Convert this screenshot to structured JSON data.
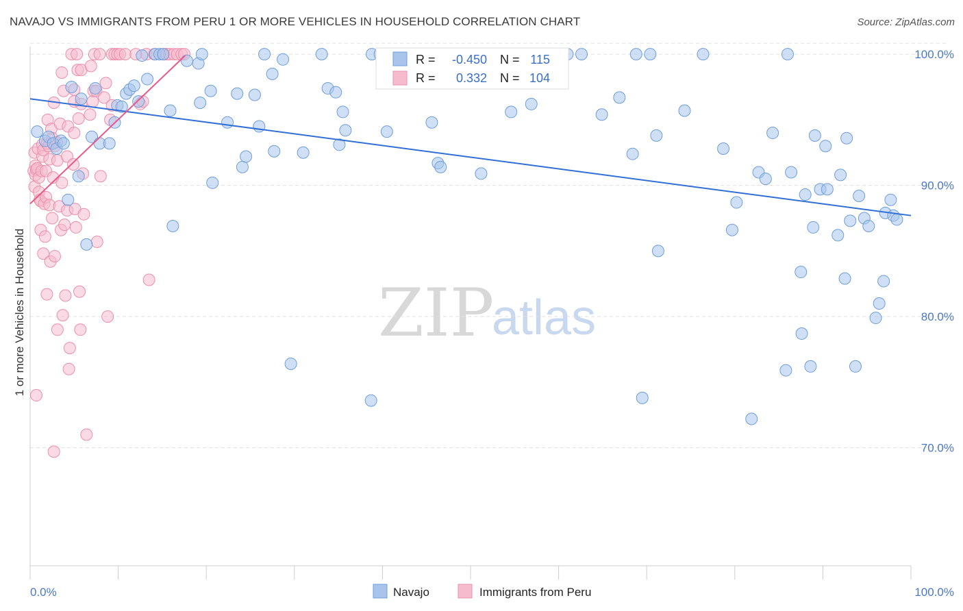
{
  "title": "NAVAJO VS IMMIGRANTS FROM PERU 1 OR MORE VEHICLES IN HOUSEHOLD CORRELATION CHART",
  "source": "Source: ZipAtlas.com",
  "watermark": {
    "zip": "ZIP",
    "atlas": "atlas"
  },
  "legend": {
    "r_label": "R =",
    "n_label": "N =",
    "rows": [
      {
        "r": "-0.450",
        "n": "115",
        "color": "#a8c4ec",
        "stroke": "#6f9edb"
      },
      {
        "r": "0.332",
        "n": "104",
        "color": "#f6bccd",
        "stroke": "#ec8fac"
      }
    ]
  },
  "colors": {
    "navajo_fill": "#a8c4ec",
    "navajo_stroke": "#6f9edb",
    "navajo_line": "#2f6fd6",
    "peru_fill": "#f6bccd",
    "peru_stroke": "#ec8fac",
    "peru_line": "#e8588a",
    "grid": "#e0e0e0",
    "axis": "#cccccc"
  },
  "chart_data": {
    "type": "scatter",
    "title": "NAVAJO VS IMMIGRANTS FROM PERU 1 OR MORE VEHICLES IN HOUSEHOLD CORRELATION CHART",
    "xlabel": "",
    "ylabel": "1 or more Vehicles in Household",
    "xlim": [
      0,
      100
    ],
    "ylim": [
      61.0,
      101.0
    ],
    "x_tick_labels": [
      "0.0%",
      "100.0%"
    ],
    "y_ticks": [
      70,
      80,
      90,
      100
    ],
    "y_tick_labels": [
      "70.0%",
      "80.0%",
      "90.0%",
      "100.0%"
    ],
    "grid": true,
    "legend_position": "top-center",
    "series": [
      {
        "name": "Navajo",
        "r": -0.45,
        "n": 115,
        "trend": [
          [
            0,
            96.6
          ],
          [
            100,
            87.7
          ]
        ],
        "points": [
          [
            0.8,
            94.1
          ],
          [
            1.7,
            93.4
          ],
          [
            2.1,
            93.7
          ],
          [
            2.6,
            93.2
          ],
          [
            3.0,
            92.8
          ],
          [
            3.5,
            93.4
          ],
          [
            3.8,
            93.2
          ],
          [
            4.3,
            88.9
          ],
          [
            4.7,
            97.5
          ],
          [
            5.5,
            90.7
          ],
          [
            5.8,
            96.6
          ],
          [
            6.4,
            85.5
          ],
          [
            7.0,
            93.7
          ],
          [
            7.4,
            97.4
          ],
          [
            7.9,
            93.2
          ],
          [
            9.0,
            93.2
          ],
          [
            9.6,
            94.8
          ],
          [
            9.9,
            96.1
          ],
          [
            10.4,
            96.0
          ],
          [
            10.9,
            97.0
          ],
          [
            11.3,
            97.3
          ],
          [
            11.8,
            97.6
          ],
          [
            12.3,
            96.4
          ],
          [
            12.7,
            99.9
          ],
          [
            13.3,
            98.1
          ],
          [
            14.2,
            100.0
          ],
          [
            14.7,
            100.0
          ],
          [
            15.1,
            100.0
          ],
          [
            15.9,
            95.7
          ],
          [
            16.2,
            86.9
          ],
          [
            17.8,
            99.5
          ],
          [
            19.1,
            99.3
          ],
          [
            19.3,
            96.3
          ],
          [
            19.5,
            100.0
          ],
          [
            20.5,
            97.2
          ],
          [
            20.7,
            90.2
          ],
          [
            22.4,
            94.8
          ],
          [
            23.5,
            97.0
          ],
          [
            24.1,
            91.4
          ],
          [
            24.5,
            92.2
          ],
          [
            25.5,
            96.9
          ],
          [
            26.0,
            94.5
          ],
          [
            26.6,
            100.0
          ],
          [
            27.5,
            98.5
          ],
          [
            27.7,
            92.6
          ],
          [
            28.7,
            99.6
          ],
          [
            29.6,
            76.4
          ],
          [
            31.0,
            92.5
          ],
          [
            33.1,
            100.0
          ],
          [
            33.8,
            97.4
          ],
          [
            34.7,
            97.1
          ],
          [
            35.1,
            93.1
          ],
          [
            35.5,
            95.6
          ],
          [
            35.8,
            94.2
          ],
          [
            38.7,
            73.6
          ],
          [
            38.8,
            100.0
          ],
          [
            39.7,
            100.0
          ],
          [
            40.5,
            94.1
          ],
          [
            43.5,
            100.0
          ],
          [
            45.6,
            94.8
          ],
          [
            46.3,
            91.7
          ],
          [
            46.6,
            91.4
          ],
          [
            51.2,
            90.9
          ],
          [
            52.3,
            100.0
          ],
          [
            54.6,
            95.6
          ],
          [
            56.9,
            96.2
          ],
          [
            59.9,
            100.0
          ],
          [
            60.2,
            100.0
          ],
          [
            61.0,
            100.0
          ],
          [
            62.6,
            100.0
          ],
          [
            64.9,
            95.4
          ],
          [
            66.9,
            96.7
          ],
          [
            68.4,
            92.4
          ],
          [
            68.8,
            100.0
          ],
          [
            69.5,
            73.8
          ],
          [
            70.4,
            100.0
          ],
          [
            71.1,
            93.8
          ],
          [
            71.3,
            85.0
          ],
          [
            74.3,
            95.7
          ],
          [
            76.4,
            100.0
          ],
          [
            78.7,
            92.8
          ],
          [
            79.7,
            86.6
          ],
          [
            80.2,
            88.7
          ],
          [
            81.9,
            72.2
          ],
          [
            82.7,
            91.0
          ],
          [
            83.5,
            90.5
          ],
          [
            84.3,
            94.0
          ],
          [
            85.8,
            75.9
          ],
          [
            86.0,
            100.0
          ],
          [
            86.4,
            91.0
          ],
          [
            87.5,
            83.4
          ],
          [
            87.6,
            78.7
          ],
          [
            88.0,
            89.3
          ],
          [
            88.6,
            76.2
          ],
          [
            88.9,
            86.8
          ],
          [
            89.1,
            93.8
          ],
          [
            89.7,
            89.7
          ],
          [
            90.3,
            93.0
          ],
          [
            90.5,
            89.7
          ],
          [
            91.7,
            86.2
          ],
          [
            92.0,
            90.8
          ],
          [
            92.5,
            82.9
          ],
          [
            92.7,
            93.6
          ],
          [
            93.1,
            87.3
          ],
          [
            93.7,
            76.2
          ],
          [
            94.1,
            89.2
          ],
          [
            94.7,
            87.5
          ],
          [
            95.2,
            86.9
          ],
          [
            96.0,
            79.9
          ],
          [
            96.4,
            81.0
          ],
          [
            96.9,
            82.7
          ],
          [
            97.1,
            87.9
          ],
          [
            97.7,
            88.9
          ],
          [
            98.0,
            87.7
          ],
          [
            98.4,
            87.4
          ]
        ]
      },
      {
        "name": "Immigrants from Peru",
        "r": 0.332,
        "n": 104,
        "trend": [
          [
            0,
            88.6
          ],
          [
            17.6,
            99.9
          ]
        ],
        "points": [
          [
            0.4,
            91.1
          ],
          [
            0.5,
            92.5
          ],
          [
            0.5,
            89.9
          ],
          [
            0.6,
            91.5
          ],
          [
            0.6,
            90.8
          ],
          [
            0.7,
            91.2
          ],
          [
            0.7,
            74.0
          ],
          [
            0.8,
            91.3
          ],
          [
            0.9,
            92.8
          ],
          [
            1.0,
            89.5
          ],
          [
            1.0,
            90.6
          ],
          [
            1.1,
            88.9
          ],
          [
            1.2,
            88.8
          ],
          [
            1.2,
            86.6
          ],
          [
            1.3,
            91.1
          ],
          [
            1.4,
            93.1
          ],
          [
            1.4,
            92.2
          ],
          [
            1.5,
            84.8
          ],
          [
            1.5,
            92.7
          ],
          [
            1.6,
            88.6
          ],
          [
            1.7,
            86.1
          ],
          [
            1.8,
            91.1
          ],
          [
            1.8,
            89.1
          ],
          [
            1.9,
            93.2
          ],
          [
            1.9,
            81.7
          ],
          [
            2.0,
            95.0
          ],
          [
            2.1,
            93.0
          ],
          [
            2.2,
            88.5
          ],
          [
            2.2,
            92.0
          ],
          [
            2.3,
            84.2
          ],
          [
            2.4,
            94.3
          ],
          [
            2.5,
            93.6
          ],
          [
            2.5,
            87.5
          ],
          [
            2.6,
            90.6
          ],
          [
            2.7,
            69.7
          ],
          [
            2.7,
            96.3
          ],
          [
            2.8,
            93.0
          ],
          [
            2.8,
            84.6
          ],
          [
            3.0,
            93.3
          ],
          [
            3.1,
            79.0
          ],
          [
            3.1,
            91.9
          ],
          [
            3.3,
            88.4
          ],
          [
            3.4,
            94.7
          ],
          [
            3.5,
            86.6
          ],
          [
            3.6,
            90.2
          ],
          [
            3.6,
            98.6
          ],
          [
            3.7,
            80.1
          ],
          [
            3.8,
            97.2
          ],
          [
            3.9,
            87.0
          ],
          [
            4.0,
            81.6
          ],
          [
            4.2,
            88.1
          ],
          [
            4.2,
            92.2
          ],
          [
            4.3,
            94.5
          ],
          [
            4.4,
            76.0
          ],
          [
            4.5,
            77.6
          ],
          [
            4.7,
            100.0
          ],
          [
            4.9,
            91.6
          ],
          [
            5.0,
            96.4
          ],
          [
            5.0,
            97.3
          ],
          [
            5.0,
            94.0
          ],
          [
            5.1,
            88.2
          ],
          [
            5.2,
            86.8
          ],
          [
            5.3,
            100.0
          ],
          [
            5.4,
            98.8
          ],
          [
            5.5,
            95.1
          ],
          [
            5.6,
            81.9
          ],
          [
            5.7,
            79.0
          ],
          [
            5.8,
            96.2
          ],
          [
            5.8,
            98.8
          ],
          [
            6.0,
            90.9
          ],
          [
            6.1,
            87.8
          ],
          [
            6.4,
            71.0
          ],
          [
            6.8,
            95.4
          ],
          [
            6.9,
            99.1
          ],
          [
            7.1,
            96.4
          ],
          [
            7.2,
            97.2
          ],
          [
            7.3,
            100.0
          ],
          [
            7.5,
            97.2
          ],
          [
            7.6,
            85.7
          ],
          [
            7.9,
            100.0
          ],
          [
            8.0,
            90.7
          ],
          [
            8.4,
            96.7
          ],
          [
            8.6,
            97.8
          ],
          [
            8.8,
            80.0
          ],
          [
            9.1,
            95.0
          ],
          [
            9.3,
            96.1
          ],
          [
            9.3,
            100.0
          ],
          [
            9.6,
            100.0
          ],
          [
            9.9,
            100.0
          ],
          [
            10.2,
            100.0
          ],
          [
            10.8,
            100.0
          ],
          [
            12.0,
            100.0
          ],
          [
            12.5,
            96.2
          ],
          [
            12.8,
            96.4
          ],
          [
            13.2,
            100.0
          ],
          [
            13.5,
            82.8
          ],
          [
            14.1,
            100.0
          ],
          [
            15.2,
            100.0
          ],
          [
            15.5,
            100.0
          ],
          [
            15.8,
            100.0
          ],
          [
            16.3,
            100.0
          ],
          [
            16.7,
            100.0
          ],
          [
            17.2,
            100.0
          ],
          [
            17.5,
            100.0
          ]
        ]
      }
    ]
  },
  "bottom_legend": [
    {
      "label": "Navajo",
      "color": "#a8c4ec",
      "stroke": "#6f9edb"
    },
    {
      "label": "Immigrants from Peru",
      "color": "#f6bccd",
      "stroke": "#ec8fac"
    }
  ]
}
